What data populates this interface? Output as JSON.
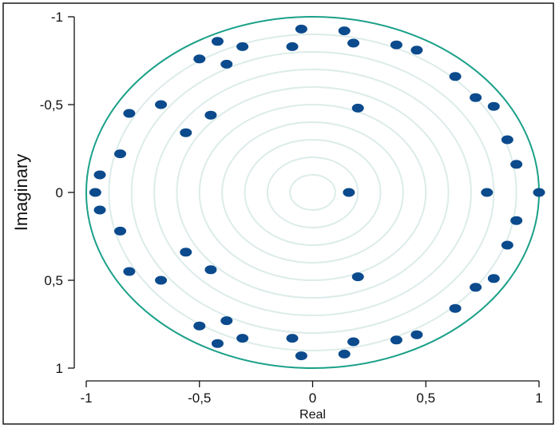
{
  "chart_data": {
    "type": "scatter",
    "xlabel": "Real",
    "ylabel": "Imaginary",
    "xlim": [
      -1,
      1
    ],
    "ylim": [
      -1,
      1
    ],
    "y_axis_inverted": true,
    "x_ticks": [
      "-1",
      "-0,5",
      "0",
      "0,5",
      "1"
    ],
    "x_tick_values": [
      -1,
      -0.5,
      0,
      0.5,
      1
    ],
    "y_ticks": [
      "-1",
      "-0,5",
      "0",
      "0,5",
      "1"
    ],
    "y_tick_values": [
      -1,
      -0.5,
      0,
      0.5,
      1
    ],
    "unit_circle_radius": 1,
    "reference_circle_radii": [
      0.1,
      0.2,
      0.3,
      0.4,
      0.5,
      0.6,
      0.7,
      0.8,
      0.9
    ],
    "grid": false,
    "colors": {
      "points": "#0b4a8c",
      "unit_circle": "#1aa088",
      "reference_circles": "#dcecea",
      "frame": "#1a1a1a",
      "axes": "#111111"
    },
    "points": [
      {
        "x": 1.0,
        "y": 0.0
      },
      {
        "x": 0.77,
        "y": 0.0
      },
      {
        "x": 0.16,
        "y": 0.0
      },
      {
        "x": -0.96,
        "y": 0.0
      },
      {
        "x": -0.94,
        "y": -0.1
      },
      {
        "x": -0.94,
        "y": 0.1
      },
      {
        "x": -0.85,
        "y": -0.22
      },
      {
        "x": -0.85,
        "y": 0.22
      },
      {
        "x": -0.81,
        "y": -0.45
      },
      {
        "x": -0.81,
        "y": 0.45
      },
      {
        "x": -0.67,
        "y": -0.5
      },
      {
        "x": -0.67,
        "y": 0.5
      },
      {
        "x": -0.56,
        "y": -0.34
      },
      {
        "x": -0.56,
        "y": 0.34
      },
      {
        "x": -0.45,
        "y": -0.44
      },
      {
        "x": -0.45,
        "y": 0.44
      },
      {
        "x": -0.5,
        "y": -0.76
      },
      {
        "x": -0.5,
        "y": 0.76
      },
      {
        "x": -0.42,
        "y": -0.86
      },
      {
        "x": -0.42,
        "y": 0.86
      },
      {
        "x": -0.38,
        "y": -0.73
      },
      {
        "x": -0.38,
        "y": 0.73
      },
      {
        "x": -0.31,
        "y": -0.83
      },
      {
        "x": -0.31,
        "y": 0.83
      },
      {
        "x": -0.09,
        "y": -0.83
      },
      {
        "x": -0.09,
        "y": 0.83
      },
      {
        "x": -0.05,
        "y": -0.93
      },
      {
        "x": -0.05,
        "y": 0.93
      },
      {
        "x": 0.14,
        "y": -0.92
      },
      {
        "x": 0.14,
        "y": 0.92
      },
      {
        "x": 0.18,
        "y": -0.85
      },
      {
        "x": 0.18,
        "y": 0.85
      },
      {
        "x": 0.2,
        "y": -0.48
      },
      {
        "x": 0.2,
        "y": 0.48
      },
      {
        "x": 0.37,
        "y": -0.84
      },
      {
        "x": 0.37,
        "y": 0.84
      },
      {
        "x": 0.46,
        "y": -0.81
      },
      {
        "x": 0.46,
        "y": 0.81
      },
      {
        "x": 0.63,
        "y": -0.66
      },
      {
        "x": 0.63,
        "y": 0.66
      },
      {
        "x": 0.72,
        "y": -0.54
      },
      {
        "x": 0.72,
        "y": 0.54
      },
      {
        "x": 0.8,
        "y": -0.49
      },
      {
        "x": 0.8,
        "y": 0.49
      },
      {
        "x": 0.86,
        "y": -0.3
      },
      {
        "x": 0.86,
        "y": 0.3
      },
      {
        "x": 0.9,
        "y": -0.16
      },
      {
        "x": 0.9,
        "y": 0.16
      }
    ]
  }
}
